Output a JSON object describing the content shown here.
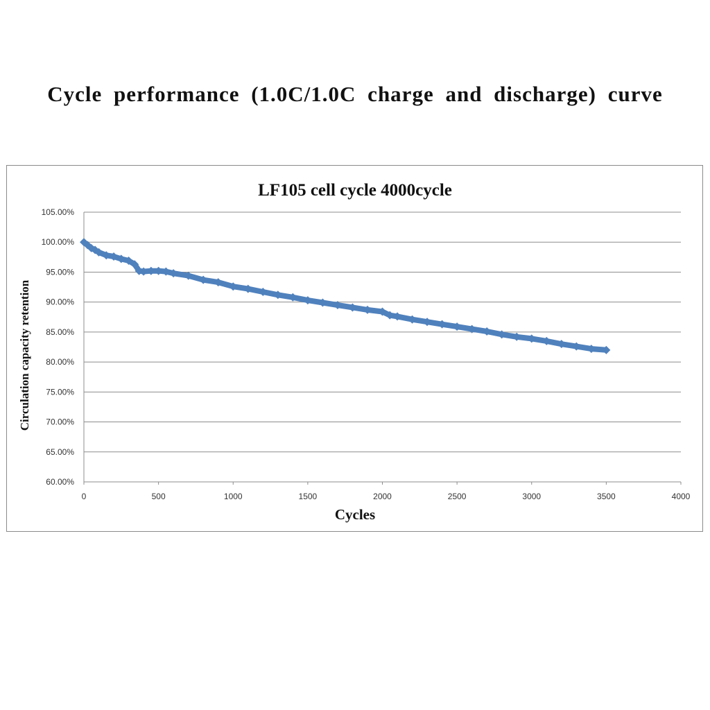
{
  "page": {
    "title": "Cycle performance (1.0C/1.0C charge and discharge) curve"
  },
  "chart_data": {
    "type": "line",
    "title": "LF105 cell cycle 4000cycle",
    "xlabel": "Cycles",
    "ylabel": "Circulation capacity retention",
    "xlim": [
      0,
      4000
    ],
    "ylim": [
      60,
      105
    ],
    "x_ticks": [
      0,
      500,
      1000,
      1500,
      2000,
      2500,
      3000,
      3500,
      4000
    ],
    "y_ticks": [
      60,
      65,
      70,
      75,
      80,
      85,
      90,
      95,
      100,
      105
    ],
    "x_tick_labels": [
      "0",
      "500",
      "1000",
      "1500",
      "2000",
      "2500",
      "3000",
      "3500",
      "4000"
    ],
    "y_tick_labels": [
      "60.00%",
      "65.00%",
      "70.00%",
      "75.00%",
      "80.00%",
      "85.00%",
      "90.00%",
      "95.00%",
      "100.00%",
      "105.00%"
    ],
    "grid": "horizontal",
    "legend": "none",
    "series_color": "#4f81bd",
    "series": [
      {
        "x": [
          0,
          25,
          50,
          75,
          100,
          150,
          200,
          250,
          300,
          340,
          370,
          400,
          450,
          500,
          550,
          600,
          700,
          800,
          900,
          1000,
          1100,
          1200,
          1300,
          1400,
          1500,
          1600,
          1700,
          1800,
          1900,
          2000,
          2050,
          2100,
          2200,
          2300,
          2400,
          2500,
          2600,
          2700,
          2800,
          2900,
          3000,
          3100,
          3200,
          3300,
          3400,
          3500
        ],
        "y": [
          100.0,
          99.5,
          99.0,
          98.7,
          98.3,
          97.8,
          97.6,
          97.2,
          96.9,
          96.3,
          95.2,
          95.1,
          95.2,
          95.2,
          95.1,
          94.8,
          94.4,
          93.7,
          93.3,
          92.6,
          92.2,
          91.7,
          91.2,
          90.8,
          90.3,
          89.9,
          89.5,
          89.1,
          88.7,
          88.4,
          87.8,
          87.6,
          87.1,
          86.7,
          86.3,
          85.9,
          85.5,
          85.1,
          84.6,
          84.2,
          83.9,
          83.5,
          83.0,
          82.6,
          82.2,
          82.0
        ]
      }
    ]
  }
}
